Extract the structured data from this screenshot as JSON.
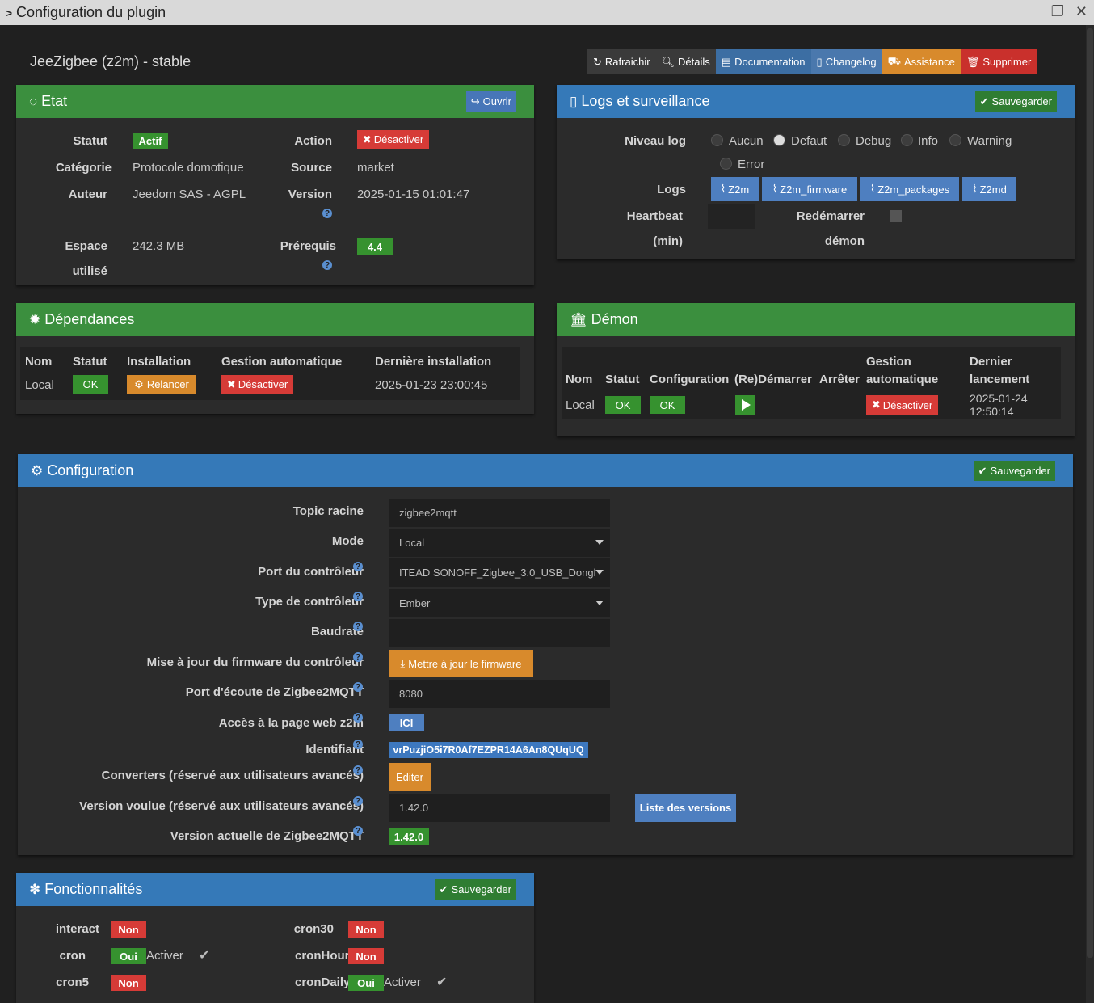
{
  "window": {
    "title": "Configuration du plugin"
  },
  "plugin": {
    "title": "JeeZigbee (z2m) - stable"
  },
  "toolbar": {
    "refresh": "Rafraichir",
    "details": "Détails",
    "documentation": "Documentation",
    "changelog": "Changelog",
    "assistance": "Assistance",
    "delete": "Supprimer"
  },
  "etat": {
    "title": "Etat",
    "open": "Ouvrir",
    "statut_label": "Statut",
    "statut_value": "Actif",
    "action_label": "Action",
    "action_value": "Désactiver",
    "categorie_label": "Catégorie",
    "categorie_value": "Protocole domotique",
    "source_label": "Source",
    "source_value": "market",
    "auteur_label": "Auteur",
    "auteur_value": "Jeedom SAS - AGPL",
    "version_label": "Version",
    "version_value": "2025-01-15 01:01:47",
    "espace_label_1": "Espace",
    "espace_label_2": "utilisé",
    "espace_value": "242.3 MB",
    "prerequis_label": "Prérequis",
    "prerequis_value": "4.4"
  },
  "logs": {
    "title": "Logs et surveillance",
    "save": "Sauvegarder",
    "niveau_label": "Niveau log",
    "levels": [
      "Aucun",
      "Defaut",
      "Debug",
      "Info",
      "Warning",
      "Error"
    ],
    "selected": "Defaut",
    "logs_label": "Logs",
    "files": [
      "Z2m",
      "Z2m_firmware",
      "Z2m_packages",
      "Z2md"
    ],
    "heartbeat_label_1": "Heartbeat",
    "heartbeat_label_2": "(min)",
    "restart_label_1": "Redémarrer",
    "restart_label_2": "démon"
  },
  "dependances": {
    "title": "Dépendances",
    "headers": [
      "Nom",
      "Statut",
      "Installation",
      "Gestion automatique",
      "Dernière installation"
    ],
    "row": {
      "nom": "Local",
      "statut": "OK",
      "installation": "Relancer",
      "gestion": "Désactiver",
      "derniere": "2025-01-23 23:00:45"
    }
  },
  "demon": {
    "title": "Démon",
    "headers": {
      "nom": "Nom",
      "statut": "Statut",
      "configuration": "Configuration",
      "redemarrer": "(Re)Démarrer",
      "arreter": "Arrêter",
      "gestion_1": "Gestion",
      "gestion_2": "automatique",
      "dernier_1": "Dernier",
      "dernier_2": "lancement"
    },
    "row": {
      "nom": "Local",
      "statut": "OK",
      "configuration": "OK",
      "gestion": "Désactiver",
      "dernier_1": "2025-01-24",
      "dernier_2": "12:50:14"
    }
  },
  "configuration": {
    "title": "Configuration",
    "save": "Sauvegarder",
    "topic_label": "Topic racine",
    "topic_value": "zigbee2mqtt",
    "mode_label": "Mode",
    "mode_value": "Local",
    "port_label": "Port du contrôleur",
    "port_value": "ITEAD SONOFF_Zigbee_3.0_USB_Dongl",
    "type_label": "Type de contrôleur",
    "type_value": "Ember",
    "baudrate_label": "Baudrate",
    "baudrate_value": "",
    "firmware_label": "Mise à jour du firmware du contrôleur",
    "firmware_button": "Mettre à jour le firmware",
    "ecoute_label": "Port d'écoute de Zigbee2MQTT",
    "ecoute_value": "8080",
    "web_label": "Accès à la page web z2m",
    "web_button": "ICI",
    "ident_label": "Identifiant",
    "ident_value": "vrPuzjiO5i7R0Af7EZPR14A6An8QUqUQ",
    "converters_label": "Converters (réservé aux utilisateurs avancés)",
    "converters_button": "Editer",
    "voulue_label": "Version voulue (réservé aux utilisateurs avancés)",
    "voulue_value": "1.42.0",
    "versions_button": "Liste des versions",
    "actuelle_label": "Version actuelle de Zigbee2MQTT",
    "actuelle_value": "1.42.0"
  },
  "fonctionnalites": {
    "title": "Fonctionnalités",
    "save": "Sauvegarder",
    "interact": "interact",
    "interact_val": "Non",
    "cron": "cron",
    "cron_val": "Oui",
    "cron_act": "Activer",
    "cron5": "cron5",
    "cron5_val": "Non",
    "cron30": "cron30",
    "cron30_val": "Non",
    "cronHourly": "cronHourly",
    "cronHourly_val": "Non",
    "cronDaily": "cronDaily",
    "cronDaily_val": "Oui",
    "cronDaily_act": "Activer"
  },
  "icons": [
    "chevron-right-icon",
    "restore-icon",
    "close-icon",
    "refresh-icon",
    "search-icon",
    "book-icon",
    "file-icon",
    "ambulance-icon",
    "trash-icon",
    "circle-notch-icon",
    "share-icon",
    "times-icon",
    "question-icon",
    "paperclip-icon",
    "check-circle-icon",
    "cog-icon",
    "bank-icon",
    "bicycle-icon",
    "play-icon",
    "cogs-icon",
    "download-icon",
    "puzzle-icon",
    "check-icon"
  ]
}
